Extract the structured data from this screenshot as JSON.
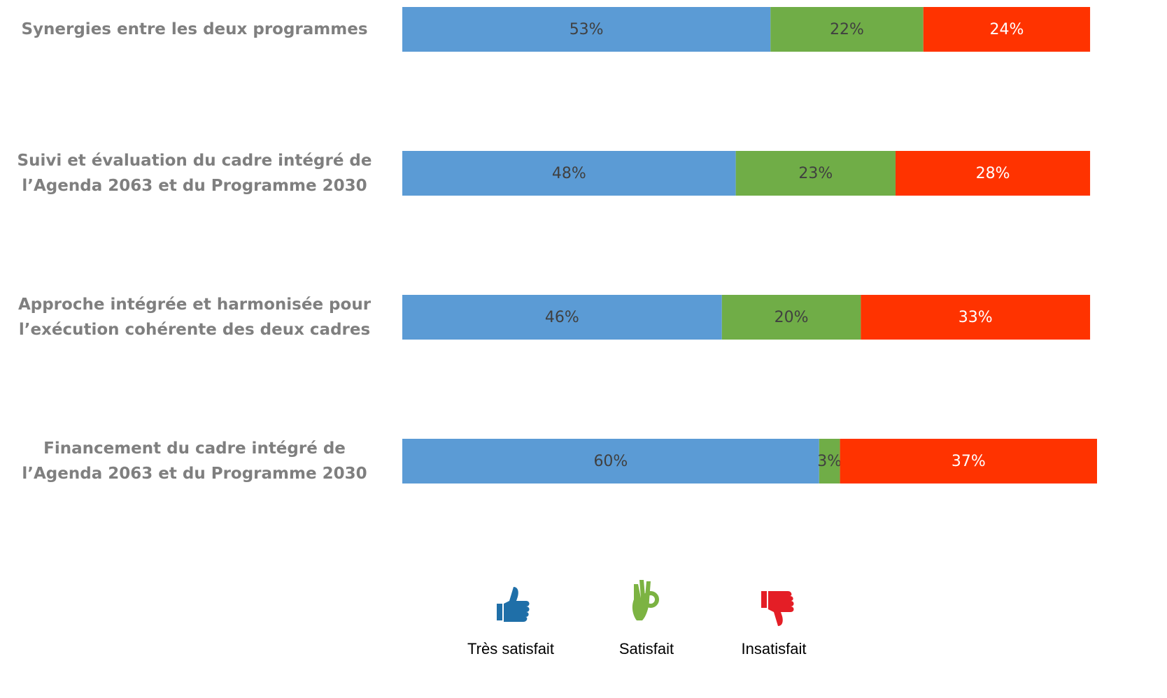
{
  "chart_data": {
    "type": "stacked-bar",
    "orientation": "horizontal",
    "categories": [
      "Synergies entre les deux programmes",
      "Suivi et évaluation du cadre intégré de l’Agenda 2063 et du Programme 2030",
      "Approche intégrée et harmonisée pour l’exécution cohérente des deux cadres",
      "Financement du cadre intégré de l’Agenda 2063 et du Programme 2030"
    ],
    "xlim": [
      0,
      100
    ],
    "series": [
      {
        "name": "Très satisfait",
        "color": "#5b9bd5",
        "values": [
          53,
          48,
          46,
          60
        ],
        "value_labels": [
          "53%",
          "48%",
          "46%",
          "60%"
        ]
      },
      {
        "name": "Satisfait",
        "color": "#70ad47",
        "values": [
          22,
          23,
          20,
          3
        ],
        "value_labels": [
          "22%",
          "23%",
          "20%",
          "3%"
        ]
      },
      {
        "name": "Insatisfait",
        "color": "#ff3300",
        "values": [
          24,
          28,
          33,
          37
        ],
        "value_labels": [
          "24%",
          "28%",
          "33%",
          "37%"
        ]
      }
    ],
    "legend": "bottom"
  }
}
